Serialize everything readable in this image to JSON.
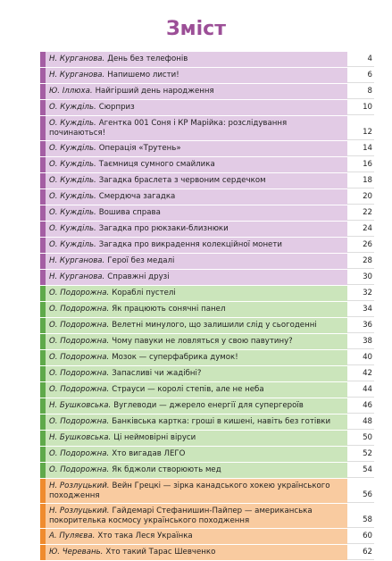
{
  "title": "Зміст",
  "sections": [
    {
      "color": "#e2cbe5",
      "accent": "#a45ea3",
      "entries": [
        {
          "author": "Н. Курганова.",
          "title": "День без телефонів",
          "page": 4
        },
        {
          "author": "Н. Курганова.",
          "title": "Напишемо листи!",
          "page": 6
        },
        {
          "author": "Ю. Іллюха.",
          "title": "Найгірший день народження",
          "page": 8
        },
        {
          "author": "О. Кужділь.",
          "title": "Сюрприз",
          "page": 10
        },
        {
          "author": "О. Кужділь.",
          "title": "Агентка 001 Соня і КР Марійка: розслідування починаються!",
          "page": 12
        },
        {
          "author": "О. Кужділь.",
          "title": "Операція «Трутень»",
          "page": 14
        },
        {
          "author": "О. Кужділь.",
          "title": "Таємниця сумного смайлика",
          "page": 16
        },
        {
          "author": "О. Кужділь.",
          "title": "Загадка браслета з червоним сердечком",
          "page": 18
        },
        {
          "author": "О. Кужділь.",
          "title": "Смердюча загадка",
          "page": 20
        },
        {
          "author": "О. Кужділь.",
          "title": "Вошива справа",
          "page": 22
        },
        {
          "author": "О. Кужділь.",
          "title": "Загадка про рюкзаки-близнюки",
          "page": 24
        },
        {
          "author": "О. Кужділь.",
          "title": "Загадка про викрадення колекційної монети",
          "page": 26
        },
        {
          "author": "Н. Курганова.",
          "title": "Герої без медалі",
          "page": 28
        },
        {
          "author": "Н. Курганова.",
          "title": "Справжні друзі",
          "page": 30
        }
      ]
    },
    {
      "color": "#cbe5bb",
      "accent": "#5fa94a",
      "entries": [
        {
          "author": "О. Подорожна.",
          "title": "Кораблі пустелі",
          "page": 32
        },
        {
          "author": "О. Подорожна.",
          "title": "Як працюють сонячні панел",
          "page": 34
        },
        {
          "author": "О. Подорожна.",
          "title": "Велетні минулого, що залишили слід у сьогоденні",
          "page": 36
        },
        {
          "author": "О. Подорожна.",
          "title": "Чому павуки не ловляться у свою павутину?",
          "page": 38
        },
        {
          "author": "О. Подорожна.",
          "title": "Мозок — суперфабрика думок!",
          "page": 40
        },
        {
          "author": "О. Подорожна.",
          "title": "Запасливі чи жадібні?",
          "page": 42
        },
        {
          "author": "О. Подорожна.",
          "title": "Страуси — королі степів, але не неба",
          "page": 44
        },
        {
          "author": "Н. Бушковська.",
          "title": "Вуглеводи — джерело енергії для супергероїв",
          "page": 46
        },
        {
          "author": "О. Подорожна.",
          "title": "Банківська картка: гроші в кишені, навіть без готівки",
          "page": 48
        },
        {
          "author": "Н. Бушковська.",
          "title": "Ці неймовірні віруси",
          "page": 50
        },
        {
          "author": "О. Подорожна.",
          "title": "Хто вигадав ЛЕГО",
          "page": 52
        },
        {
          "author": "О. Подорожна.",
          "title": "Як бджоли створюють мед",
          "page": 54
        }
      ]
    },
    {
      "color": "#f9cba0",
      "accent": "#ef8b2e",
      "entries": [
        {
          "author": "Н. Розлуцький.",
          "title": "Вейн Грецкі — зірка канадського хокею українського походження",
          "page": 56
        },
        {
          "author": "Н. Розлуцький.",
          "title": "Гайдемарі Стефанишин-Пайпер — американська покорителька космосу українського походження",
          "page": 58
        },
        {
          "author": "А. Пуляєва.",
          "title": "Хто така Леся Українка",
          "page": 60
        },
        {
          "author": "Ю. Черевань.",
          "title": "Хто такий Тарас Шевченко",
          "page": 62
        }
      ]
    }
  ]
}
